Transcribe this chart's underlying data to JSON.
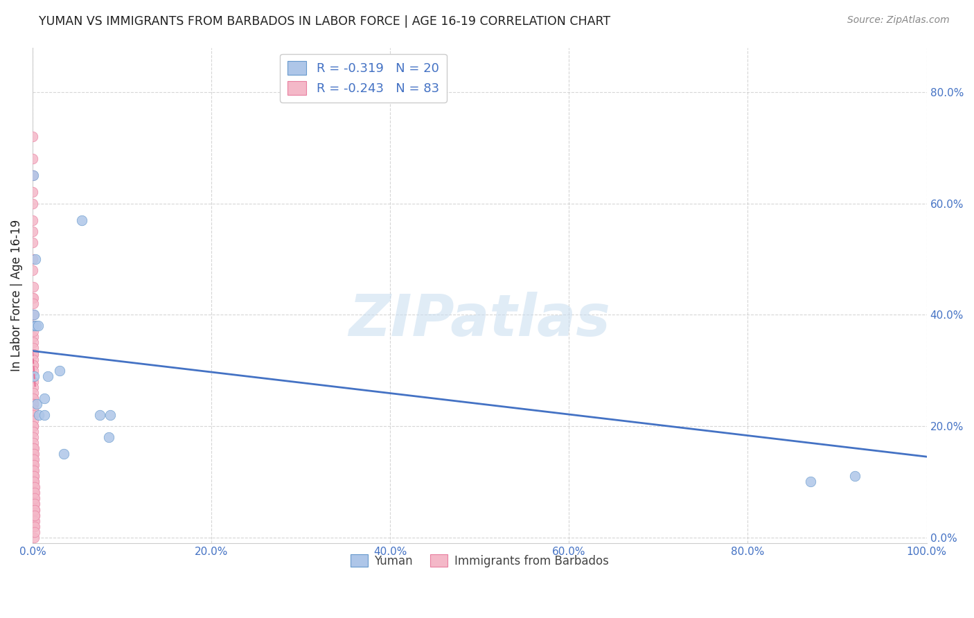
{
  "title": "YUMAN VS IMMIGRANTS FROM BARBADOS IN LABOR FORCE | AGE 16-19 CORRELATION CHART",
  "source": "Source: ZipAtlas.com",
  "ylabel": "In Labor Force | Age 16-19",
  "watermark": "ZIPatlas",
  "yuman_x": [
    0.001,
    0.001,
    0.002,
    0.002,
    0.003,
    0.004,
    0.005,
    0.006,
    0.007,
    0.013,
    0.013,
    0.017,
    0.03,
    0.035,
    0.055,
    0.075,
    0.085,
    0.087,
    0.87,
    0.92
  ],
  "yuman_y": [
    0.65,
    0.38,
    0.4,
    0.29,
    0.5,
    0.38,
    0.24,
    0.38,
    0.22,
    0.25,
    0.22,
    0.29,
    0.3,
    0.15,
    0.57,
    0.22,
    0.18,
    0.22,
    0.1,
    0.11
  ],
  "barbados_x": [
    0.0002,
    0.0002,
    0.0002,
    0.0003,
    0.0003,
    0.0003,
    0.0003,
    0.0004,
    0.0004,
    0.0004,
    0.0004,
    0.0005,
    0.0005,
    0.0005,
    0.0005,
    0.0005,
    0.0005,
    0.0005,
    0.0006,
    0.0006,
    0.0006,
    0.0006,
    0.0006,
    0.0006,
    0.0007,
    0.0007,
    0.0007,
    0.0007,
    0.0007,
    0.0008,
    0.0008,
    0.0008,
    0.0008,
    0.0008,
    0.0009,
    0.0009,
    0.0009,
    0.0009,
    0.001,
    0.001,
    0.001,
    0.001,
    0.001,
    0.0011,
    0.0011,
    0.0011,
    0.0011,
    0.0012,
    0.0012,
    0.0012,
    0.0012,
    0.0013,
    0.0013,
    0.0013,
    0.0014,
    0.0014,
    0.0014,
    0.0015,
    0.0015,
    0.0016,
    0.0016,
    0.0017,
    0.0017,
    0.0018,
    0.0018,
    0.0018,
    0.0019,
    0.0019,
    0.0019,
    0.002,
    0.002,
    0.002,
    0.0021,
    0.0021,
    0.0022,
    0.0022,
    0.0023,
    0.0023,
    0.0024,
    0.0024,
    0.0025,
    0.0025,
    0.0026
  ],
  "barbados_y": [
    0.72,
    0.68,
    0.65,
    0.62,
    0.6,
    0.57,
    0.55,
    0.53,
    0.5,
    0.48,
    0.43,
    0.45,
    0.43,
    0.42,
    0.4,
    0.38,
    0.36,
    0.33,
    0.38,
    0.37,
    0.35,
    0.34,
    0.33,
    0.31,
    0.32,
    0.31,
    0.3,
    0.28,
    0.25,
    0.27,
    0.26,
    0.25,
    0.24,
    0.22,
    0.24,
    0.23,
    0.22,
    0.2,
    0.21,
    0.2,
    0.19,
    0.18,
    0.16,
    0.17,
    0.16,
    0.15,
    0.13,
    0.14,
    0.13,
    0.12,
    0.1,
    0.11,
    0.1,
    0.09,
    0.08,
    0.07,
    0.06,
    0.06,
    0.05,
    0.04,
    0.03,
    0.16,
    0.15,
    0.14,
    0.13,
    0.02,
    0.12,
    0.11,
    0.0,
    0.1,
    0.08,
    0.02,
    0.09,
    0.08,
    0.07,
    0.05,
    0.06,
    0.04,
    0.05,
    0.03,
    0.04,
    0.02,
    0.01
  ],
  "yuman_color": "#aec6e8",
  "yuman_edge_color": "#6699cc",
  "barbados_color": "#f4b8c8",
  "barbados_edge_color": "#e87fa0",
  "yuman_line_color": "#4472c4",
  "barbados_line_color": "#e8749a",
  "yuman_line_x": [
    0.0,
    1.0
  ],
  "yuman_line_y": [
    0.335,
    0.145
  ],
  "barbados_line_x": [
    0.0,
    0.003
  ],
  "barbados_line_y": [
    0.335,
    0.27
  ],
  "r_yuman": -0.319,
  "n_yuman": 20,
  "r_barbados": -0.243,
  "n_barbados": 83,
  "xlim": [
    0.0,
    1.0
  ],
  "ylim": [
    -0.01,
    0.88
  ],
  "xticks": [
    0.0,
    0.2,
    0.4,
    0.6,
    0.8,
    1.0
  ],
  "yticks": [
    0.0,
    0.2,
    0.4,
    0.6,
    0.8
  ],
  "xtick_labels": [
    "0.0%",
    "20.0%",
    "40.0%",
    "60.0%",
    "80.0%",
    "100.0%"
  ],
  "ytick_labels": [
    "0.0%",
    "20.0%",
    "40.0%",
    "60.0%",
    "80.0%"
  ],
  "grid_color": "#cccccc",
  "background_color": "#ffffff",
  "tick_color": "#4472c4",
  "title_color": "#222222",
  "source_color": "#888888"
}
